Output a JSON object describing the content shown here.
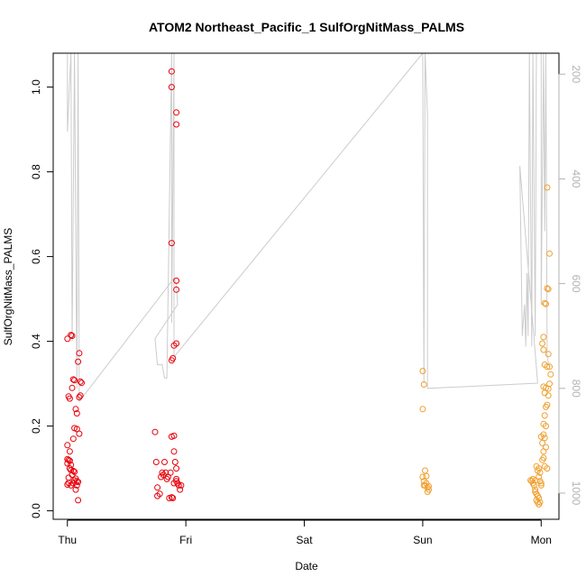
{
  "chart_data": {
    "type": "scatter",
    "title": "ATOM2 Northeast_Pacific_1 SulfOrgNitMass_PALMS",
    "xlabel": "Date",
    "ylabel": "SulfOrgNitMass_PALMS",
    "x_ticks": [
      "Thu",
      "Fri",
      "Sat",
      "Sun",
      "Mon"
    ],
    "xlim": [
      -0.12,
      4.15
    ],
    "ylim": [
      -0.02,
      1.08
    ],
    "y_ticks": [
      0.0,
      0.2,
      0.4,
      0.6,
      0.8,
      1.0
    ],
    "y2_ticks": [
      200,
      400,
      600,
      800,
      1000
    ],
    "y2lim": [
      1050,
      160
    ],
    "y2_reversed": true,
    "grid": false,
    "colors": {
      "series_1": "#e8000b",
      "series_2": "#f0a030",
      "pressure_line": "#cccccc",
      "axis": "#000000",
      "right_axis": "#b3b3b3"
    },
    "series": [
      {
        "color": "#e8000b",
        "points": [
          [
            0.0,
            0.406
          ],
          [
            0.01,
            0.27
          ],
          [
            0.02,
            0.265
          ],
          [
            0.03,
            0.415
          ],
          [
            0.04,
            0.413
          ],
          [
            0.05,
            0.31
          ],
          [
            0.06,
            0.308
          ],
          [
            0.07,
            0.24
          ],
          [
            0.08,
            0.23
          ],
          [
            0.09,
            0.352
          ],
          [
            0.1,
            0.372
          ],
          [
            0.11,
            0.305
          ],
          [
            0.12,
            0.302
          ],
          [
            0.11,
            0.272
          ],
          [
            0.1,
            0.268
          ],
          [
            0.04,
            0.29
          ],
          [
            0.06,
            0.195
          ],
          [
            0.08,
            0.193
          ],
          [
            0.05,
            0.17
          ],
          [
            0.1,
            0.182
          ],
          [
            0.0,
            0.155
          ],
          [
            0.02,
            0.14
          ],
          [
            0.0,
            0.122
          ],
          [
            0.01,
            0.12
          ],
          [
            0.02,
            0.118
          ],
          [
            0.0,
            0.112
          ],
          [
            0.03,
            0.108
          ],
          [
            0.02,
            0.1
          ],
          [
            0.03,
            0.096
          ],
          [
            0.05,
            0.094
          ],
          [
            0.06,
            0.092
          ],
          [
            0.04,
            0.085
          ],
          [
            0.01,
            0.078
          ],
          [
            0.07,
            0.076
          ],
          [
            0.06,
            0.072
          ],
          [
            0.08,
            0.07
          ],
          [
            0.09,
            0.068
          ],
          [
            0.01,
            0.066
          ],
          [
            0.0,
            0.062
          ],
          [
            0.03,
            0.06
          ],
          [
            0.05,
            0.065
          ],
          [
            0.08,
            0.06
          ],
          [
            0.07,
            0.05
          ],
          [
            0.09,
            0.025
          ],
          [
            0.74,
            0.186
          ],
          [
            0.75,
            0.115
          ],
          [
            0.76,
            0.055
          ],
          [
            0.76,
            0.035
          ],
          [
            0.78,
            0.04
          ],
          [
            0.79,
            0.08
          ],
          [
            0.8,
            0.09
          ],
          [
            0.81,
            0.085
          ],
          [
            0.82,
            0.115
          ],
          [
            0.83,
            0.09
          ],
          [
            0.84,
            0.075
          ],
          [
            0.85,
            0.08
          ],
          [
            0.86,
            0.03
          ],
          [
            0.87,
            0.09
          ],
          [
            0.88,
            0.032
          ],
          [
            0.89,
            0.03
          ],
          [
            0.9,
            0.177
          ],
          [
            0.9,
            0.14
          ],
          [
            0.91,
            0.115
          ],
          [
            0.92,
            0.1
          ],
          [
            0.92,
            0.07
          ],
          [
            0.93,
            0.065
          ],
          [
            0.94,
            0.06
          ],
          [
            0.95,
            0.05
          ],
          [
            0.96,
            0.06
          ],
          [
            0.9,
            0.065
          ],
          [
            0.92,
            0.075
          ],
          [
            0.88,
            0.175
          ],
          [
            0.88,
            0.355
          ],
          [
            0.89,
            0.36
          ],
          [
            0.9,
            0.39
          ],
          [
            0.92,
            0.395
          ],
          [
            0.88,
            0.632
          ],
          [
            0.92,
            0.543
          ],
          [
            0.92,
            0.522
          ],
          [
            0.88,
            1.037
          ],
          [
            0.88,
            1.0
          ],
          [
            0.92,
            0.94
          ],
          [
            0.92,
            0.912
          ]
        ]
      },
      {
        "color": "#f0a030",
        "points": [
          [
            3.0,
            0.33
          ],
          [
            3.01,
            0.298
          ],
          [
            3.0,
            0.24
          ],
          [
            3.0,
            0.08
          ],
          [
            3.01,
            0.07
          ],
          [
            3.02,
            0.095
          ],
          [
            3.03,
            0.082
          ],
          [
            3.03,
            0.065
          ],
          [
            3.04,
            0.055
          ],
          [
            3.04,
            0.045
          ],
          [
            3.05,
            0.05
          ],
          [
            3.02,
            0.06
          ],
          [
            3.01,
            0.06
          ],
          [
            3.05,
            0.058
          ],
          [
            3.91,
            0.072
          ],
          [
            3.92,
            0.07
          ],
          [
            3.93,
            0.065
          ],
          [
            3.94,
            0.06
          ],
          [
            3.95,
            0.05
          ],
          [
            3.95,
            0.045
          ],
          [
            3.96,
            0.04
          ],
          [
            3.97,
            0.035
          ],
          [
            3.98,
            0.03
          ],
          [
            3.96,
            0.025
          ],
          [
            3.97,
            0.02
          ],
          [
            3.98,
            0.015
          ],
          [
            3.99,
            0.02
          ],
          [
            4.0,
            0.06
          ],
          [
            3.99,
            0.07
          ],
          [
            3.98,
            0.08
          ],
          [
            3.97,
            0.095
          ],
          [
            3.98,
            0.1
          ],
          [
            3.96,
            0.105
          ],
          [
            3.99,
            0.09
          ],
          [
            4.0,
            0.065
          ],
          [
            3.95,
            0.072
          ],
          [
            3.93,
            0.075
          ],
          [
            4.01,
            0.12
          ],
          [
            4.02,
            0.14
          ],
          [
            4.01,
            0.16
          ],
          [
            4.0,
            0.175
          ],
          [
            4.02,
            0.18
          ],
          [
            4.03,
            0.172
          ],
          [
            4.04,
            0.15
          ],
          [
            4.02,
            0.125
          ],
          [
            4.03,
            0.105
          ],
          [
            4.05,
            0.1
          ],
          [
            4.04,
            0.2
          ],
          [
            4.02,
            0.205
          ],
          [
            4.03,
            0.225
          ],
          [
            4.04,
            0.245
          ],
          [
            4.05,
            0.25
          ],
          [
            4.06,
            0.272
          ],
          [
            4.03,
            0.278
          ],
          [
            4.02,
            0.293
          ],
          [
            4.04,
            0.29
          ],
          [
            4.06,
            0.288
          ],
          [
            4.07,
            0.3
          ],
          [
            4.08,
            0.322
          ],
          [
            4.07,
            0.34
          ],
          [
            4.05,
            0.34
          ],
          [
            4.03,
            0.345
          ],
          [
            4.06,
            0.37
          ],
          [
            4.02,
            0.38
          ],
          [
            4.01,
            0.395
          ],
          [
            4.02,
            0.41
          ],
          [
            4.04,
            0.488
          ],
          [
            4.05,
            0.525
          ],
          [
            4.03,
            0.49
          ],
          [
            4.06,
            0.523
          ],
          [
            4.07,
            0.607
          ],
          [
            4.05,
            0.763
          ]
        ]
      }
    ],
    "pressure_trace": [
      [
        0.0,
        162
      ],
      [
        0.0,
        310
      ],
      [
        0.03,
        160
      ],
      [
        0.04,
        710
      ],
      [
        0.06,
        160
      ],
      [
        0.08,
        800
      ],
      [
        0.09,
        160
      ],
      [
        0.1,
        825
      ],
      [
        0.9,
        590
      ],
      [
        0.92,
        600
      ],
      [
        0.93,
        640
      ],
      [
        0.74,
        705
      ],
      [
        0.76,
        755
      ],
      [
        0.8,
        755
      ],
      [
        0.82,
        780
      ],
      [
        0.84,
        780
      ],
      [
        0.88,
        160
      ],
      [
        0.88,
        675
      ],
      [
        0.9,
        160
      ],
      [
        0.9,
        740
      ],
      [
        3.0,
        160
      ],
      [
        3.01,
        790
      ],
      [
        3.02,
        160
      ],
      [
        3.04,
        280
      ],
      [
        3.04,
        800
      ],
      [
        3.97,
        790
      ],
      [
        3.82,
        375
      ],
      [
        3.84,
        700
      ],
      [
        3.86,
        640
      ],
      [
        3.87,
        720
      ],
      [
        3.88,
        580
      ],
      [
        3.89,
        700
      ],
      [
        3.9,
        160
      ],
      [
        3.92,
        720
      ],
      [
        3.93,
        160
      ],
      [
        3.95,
        700
      ],
      [
        3.96,
        160
      ],
      [
        4.0,
        160
      ],
      [
        4.0,
        640
      ],
      [
        4.02,
        160
      ],
      [
        4.03,
        500
      ],
      [
        4.04,
        160
      ],
      [
        4.05,
        740
      ],
      [
        4.07,
        760
      ]
    ]
  }
}
